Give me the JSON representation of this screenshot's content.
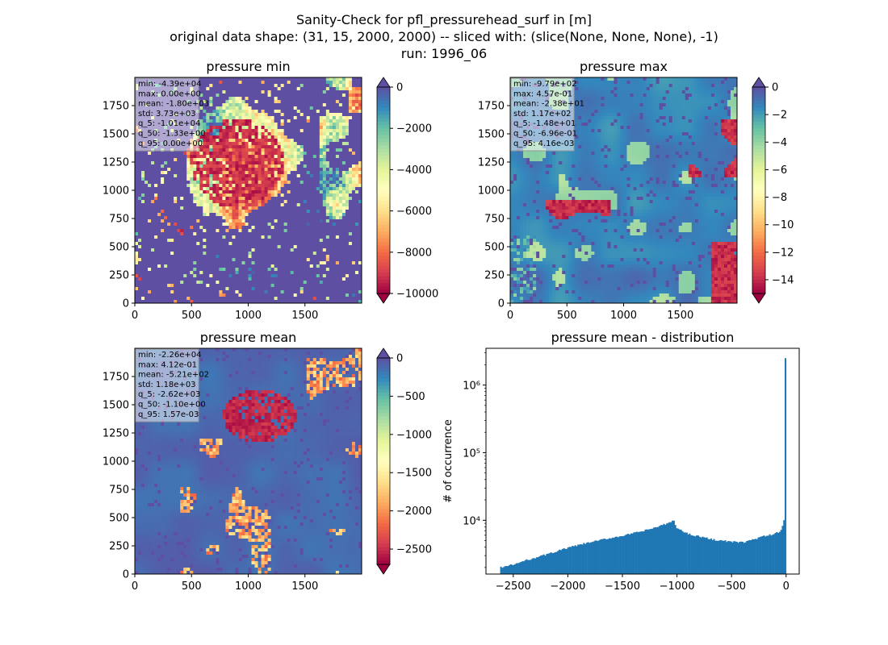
{
  "figure": {
    "title_lines": [
      "Sanity-Check for pfl_pressurehead_surf in [m]",
      "original data shape: (31, 15, 2000, 2000) -- sliced with: (slice(None, None, None), -1)",
      "run: 1996_06"
    ]
  },
  "chart_data": [
    {
      "type": "heatmap",
      "title": "pressure min",
      "colormap": "Spectral",
      "over_color": "#5e4fa2",
      "under_color": "#9e0142",
      "xlim": [
        0,
        2000
      ],
      "ylim": [
        0,
        2000
      ],
      "xticks": [
        0,
        500,
        1000,
        1500
      ],
      "yticks": [
        0,
        250,
        500,
        750,
        1000,
        1250,
        1500,
        1750
      ],
      "colorbar": {
        "range": [
          -10000,
          0
        ],
        "ticks": [
          0,
          -2000,
          -4000,
          -6000,
          -8000,
          -10000
        ],
        "tick_labels": [
          "0",
          "−2000",
          "−4000",
          "−6000",
          "−8000",
          "−10000"
        ],
        "extend": "both"
      },
      "stats": [
        "min: -4.39e+04",
        "max: 0.00e+00",
        "mean: -1.80e+03",
        "std: 3.73e+03",
        "q_5: -1.01e+04",
        "q_50: -1.33e+00",
        "q_95: 0.00e+00"
      ],
      "background_fraction": 0.0
    },
    {
      "type": "heatmap",
      "title": "pressure max",
      "colormap": "Spectral",
      "over_color": "#5e4fa2",
      "under_color": "#9e0142",
      "xlim": [
        0,
        2000
      ],
      "ylim": [
        0,
        2000
      ],
      "xticks": [
        0,
        500,
        1000,
        1500
      ],
      "yticks": [
        0,
        250,
        500,
        750,
        1000,
        1250,
        1500,
        1750
      ],
      "colorbar": {
        "range": [
          -15,
          0
        ],
        "ticks": [
          0,
          -2,
          -4,
          -6,
          -8,
          -10,
          -12,
          -14
        ],
        "tick_labels": [
          "0",
          "−2",
          "−4",
          "−6",
          "−8",
          "−10",
          "−12",
          "−14"
        ],
        "extend": "both"
      },
      "stats": [
        "min: -9.79e+02",
        "max: 4.57e-01",
        "mean: -2.38e+01",
        "std: 1.17e+02",
        "q_5: -1.48e+01",
        "q_50: -6.96e-01",
        "q_95: 4.16e-03"
      ],
      "background_fraction": 0.93
    },
    {
      "type": "heatmap",
      "title": "pressure mean",
      "colormap": "Spectral",
      "over_color": "#5e4fa2",
      "under_color": "#9e0142",
      "xlim": [
        0,
        2000
      ],
      "ylim": [
        0,
        2000
      ],
      "xticks": [
        0,
        500,
        1000,
        1500
      ],
      "yticks": [
        0,
        250,
        500,
        750,
        1000,
        1250,
        1500,
        1750
      ],
      "colorbar": {
        "range": [
          -2700,
          0
        ],
        "ticks": [
          0,
          -500,
          -1000,
          -1500,
          -2000,
          -2500
        ],
        "tick_labels": [
          "0",
          "−500",
          "−1000",
          "−1500",
          "−2000",
          "−2500"
        ],
        "extend": "both"
      },
      "stats": [
        "min: -2.26e+04",
        "max: 4.12e-01",
        "mean: -5.21e+02",
        "std: 1.18e+03",
        "q_5: -2.62e+03",
        "q_50: -1.10e+00",
        "q_95: 1.57e-03"
      ],
      "background_fraction": 0.97
    },
    {
      "type": "bar",
      "title": "pressure mean - distribution",
      "xlabel": "",
      "ylabel": "# of occurrence",
      "yscale": "log",
      "bar_color": "#1f77b4",
      "xlim": [
        -2750,
        120
      ],
      "ylim": [
        1600,
        3500000
      ],
      "xticks": [
        -2500,
        -2000,
        -1500,
        -1000,
        -500,
        0
      ],
      "xtick_labels": [
        "−2500",
        "−2000",
        "−1500",
        "−1000",
        "−500",
        "0"
      ],
      "yticks": [
        10000,
        100000,
        1000000
      ],
      "ytick_labels": [
        "10⁴",
        "10⁵",
        "10⁶"
      ],
      "bins": [
        -2620,
        0
      ],
      "bin_width": 13.1,
      "profile_x": [
        -2620,
        -2500,
        -2400,
        -2300,
        -2200,
        -2100,
        -2000,
        -1900,
        -1800,
        -1700,
        -1600,
        -1500,
        -1400,
        -1300,
        -1200,
        -1100,
        -1050,
        -1030,
        -1000,
        -950,
        -900,
        -800,
        -700,
        -600,
        -500,
        -400,
        -300,
        -200,
        -100,
        -50,
        -30,
        -15,
        -7,
        0
      ],
      "profile_y": [
        2000,
        2200,
        2500,
        2800,
        3100,
        3500,
        3900,
        4300,
        4700,
        5100,
        5500,
        5900,
        6400,
        7000,
        7800,
        8800,
        9500,
        10000,
        7600,
        6900,
        6300,
        5800,
        5300,
        5000,
        4800,
        4700,
        5200,
        5800,
        6300,
        7000,
        8500,
        10800,
        23000,
        2500000
      ]
    }
  ]
}
